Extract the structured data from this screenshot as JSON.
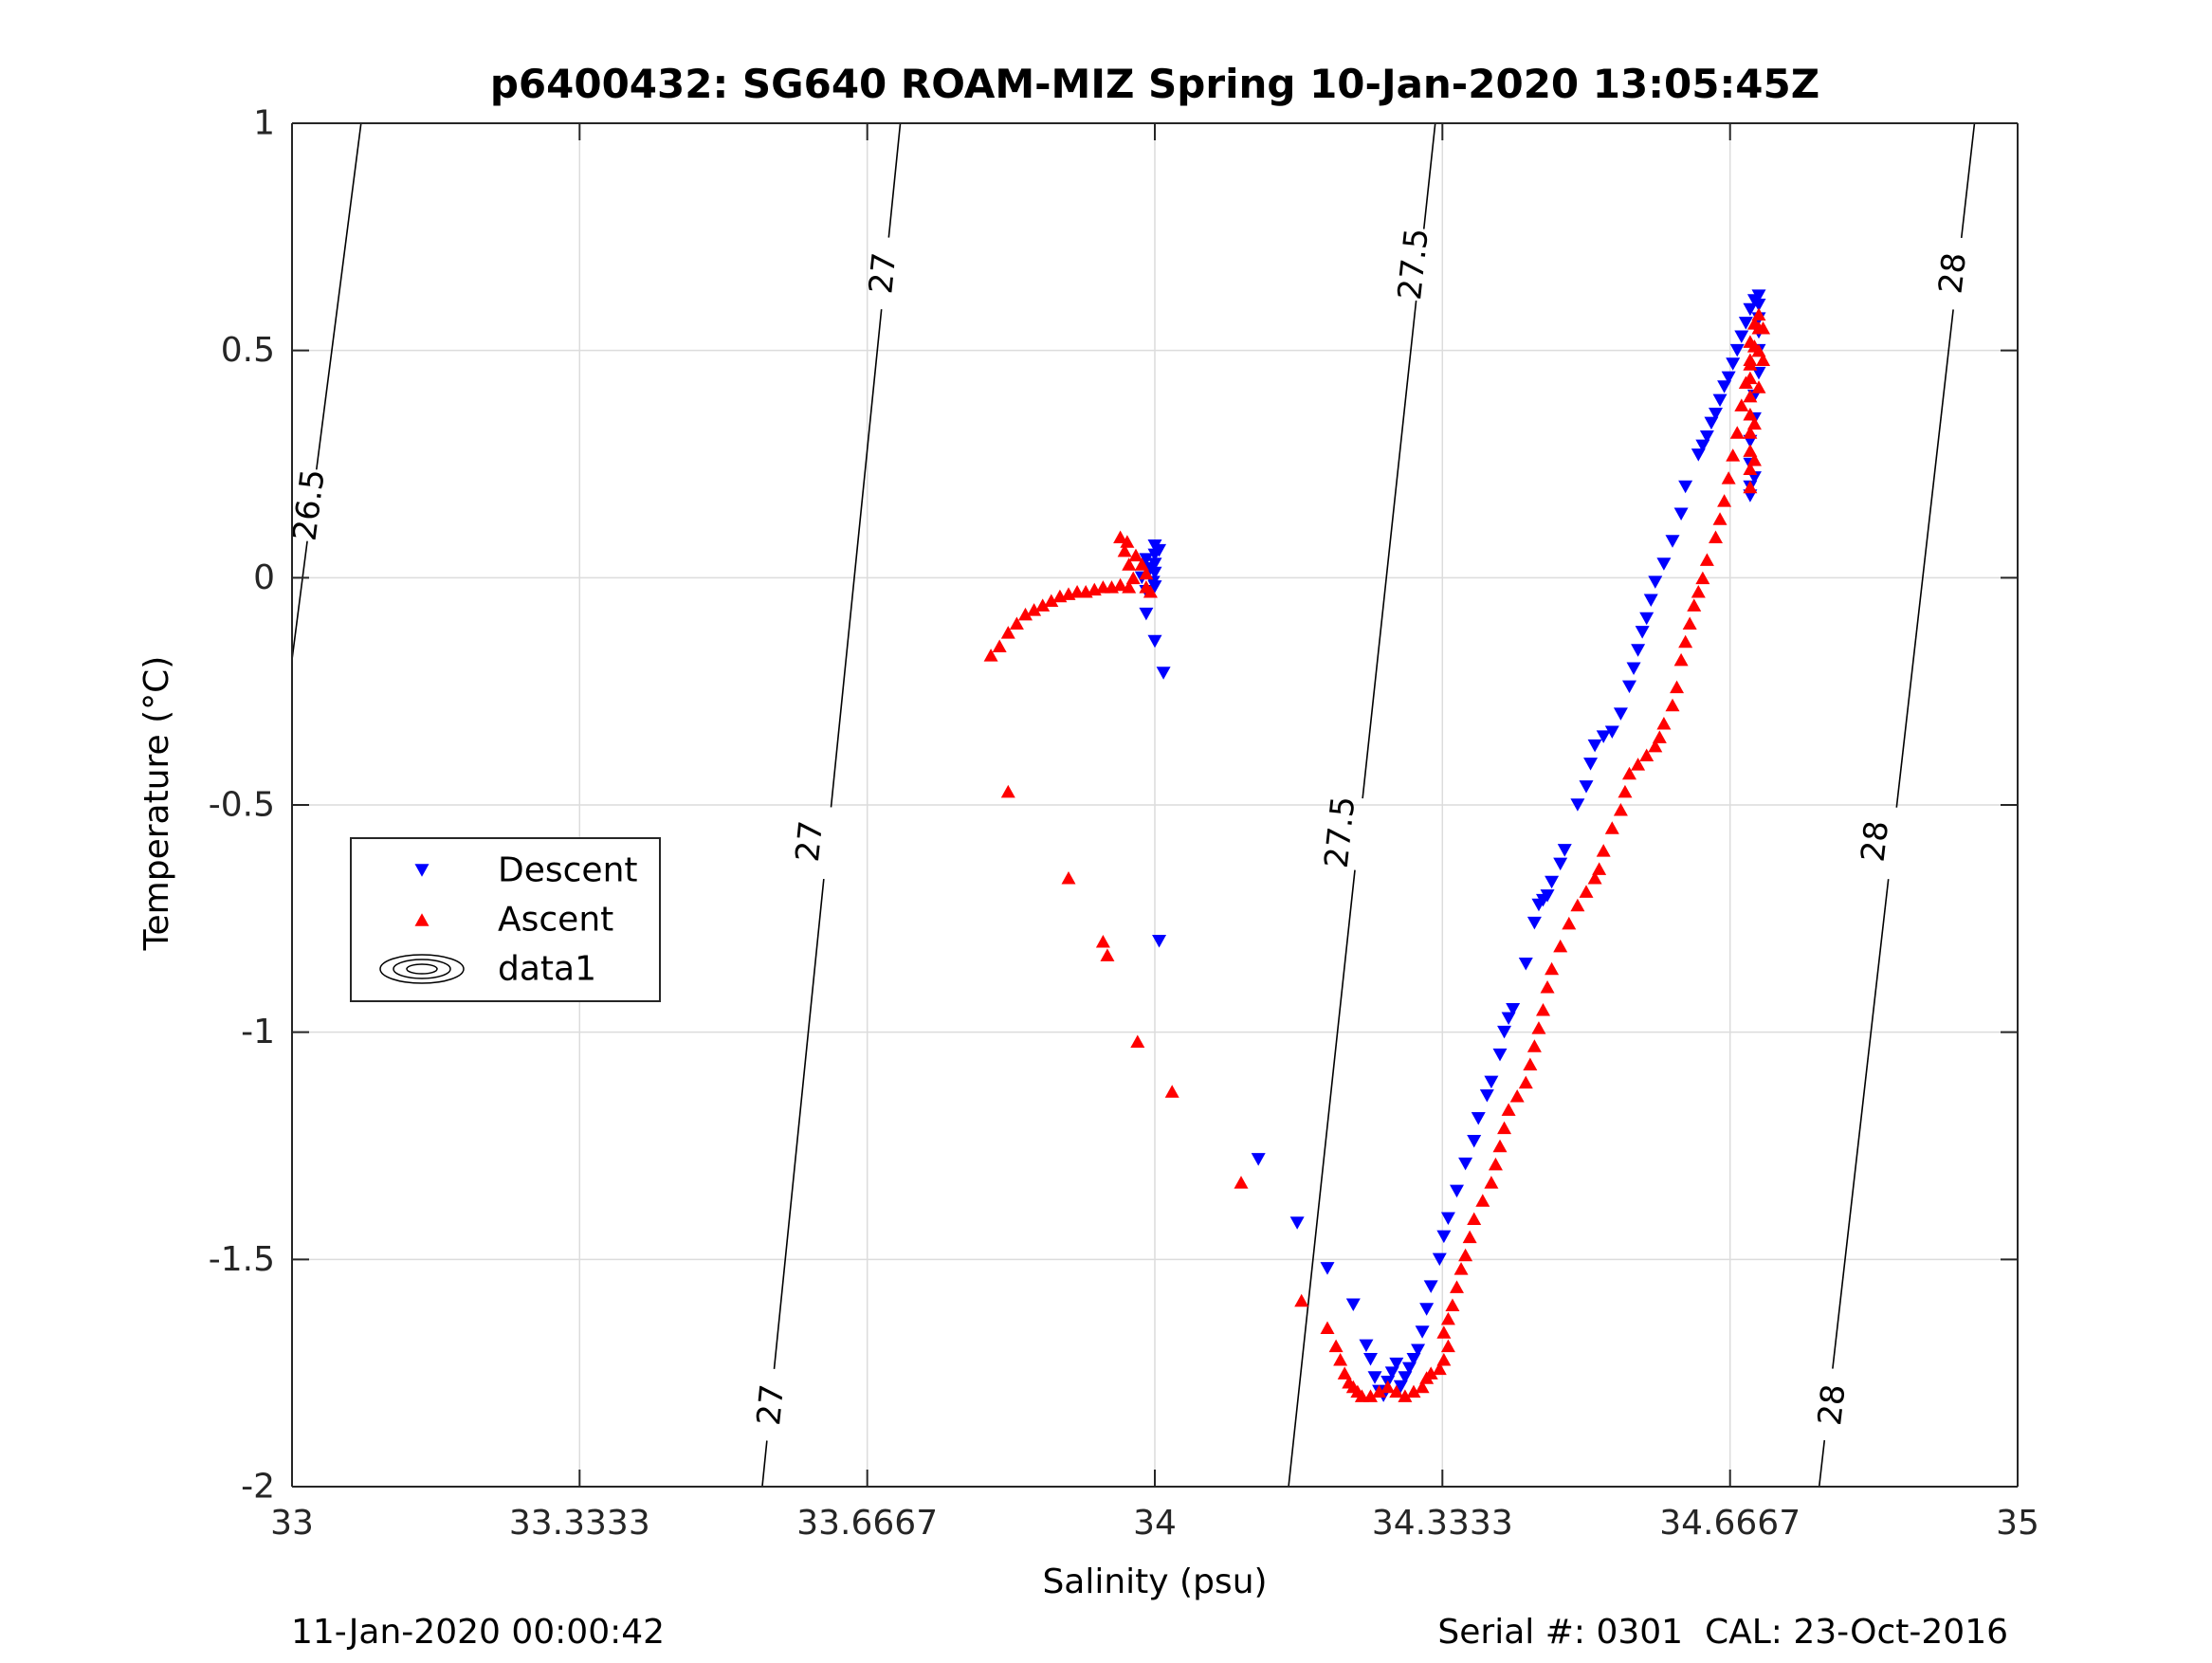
{
  "chart_data": {
    "type": "scatter",
    "title": "p6400432: SG640 ROAM-MIZ Spring 10-Jan-2020 13:05:45Z",
    "xlabel": "Salinity (psu)",
    "ylabel": "Temperature (°C)",
    "xlim": [
      33,
      35
    ],
    "ylim": [
      -2,
      1
    ],
    "xticks": [
      33,
      33.3333,
      33.6667,
      34,
      34.3333,
      34.6667,
      35
    ],
    "xtick_labels": [
      "33",
      "33.3333",
      "33.6667",
      "34",
      "34.3333",
      "34.6667",
      "35"
    ],
    "yticks": [
      1,
      0.5,
      0,
      -0.5,
      -1,
      -1.5,
      -2
    ],
    "ytick_labels": [
      "1",
      "0.5",
      "0",
      "-0.5",
      "-1",
      "-1.5",
      "-2"
    ],
    "grid": true,
    "legend_position": "left-middle",
    "footer_left": "11-Jan-2020 00:00:42",
    "footer_right": "Serial #: 0301  CAL: 23-Oct-2016",
    "contours": [
      {
        "level": "26.5",
        "points": [
          [
            33.08,
            1.0
          ],
          [
            33.0,
            -0.18
          ]
        ],
        "labels": [
          {
            "text": "26.5",
            "x": 33.02,
            "y": 0.16
          }
        ]
      },
      {
        "level": "27",
        "points": [
          [
            33.705,
            1.0
          ],
          [
            33.545,
            -2.0
          ]
        ],
        "labels": [
          {
            "text": "27",
            "x": 33.685,
            "y": 0.67
          },
          {
            "text": "27",
            "x": 33.6,
            "y": -0.58
          },
          {
            "text": "27",
            "x": 33.555,
            "y": -1.82
          }
        ]
      },
      {
        "level": "27.5",
        "points": [
          [
            34.325,
            1.0
          ],
          [
            34.155,
            -2.0
          ]
        ],
        "labels": [
          {
            "text": "27.5",
            "x": 34.3,
            "y": 0.69
          },
          {
            "text": "27.5",
            "x": 34.215,
            "y": -0.56
          }
        ]
      },
      {
        "level": "28",
        "points": [
          [
            34.95,
            1.0
          ],
          [
            34.77,
            -2.0
          ]
        ],
        "labels": [
          {
            "text": "28",
            "x": 34.925,
            "y": 0.67
          },
          {
            "text": "28",
            "x": 34.835,
            "y": -0.58
          },
          {
            "text": "28",
            "x": 34.785,
            "y": -1.82
          }
        ]
      }
    ],
    "series": [
      {
        "name": "Descent",
        "marker": "triangle-down",
        "color": "#0000ff",
        "points": [
          [
            34.0,
            0.07
          ],
          [
            34.0,
            0.05
          ],
          [
            34.0,
            0.03
          ],
          [
            34.0,
            0.01
          ],
          [
            33.995,
            0.02
          ],
          [
            33.998,
            -0.01
          ],
          [
            34.005,
            0.06
          ],
          [
            33.99,
            0.04
          ],
          [
            33.985,
            0.0
          ],
          [
            33.99,
            -0.03
          ],
          [
            34.0,
            -0.02
          ],
          [
            33.99,
            -0.08
          ],
          [
            34.0,
            -0.14
          ],
          [
            34.01,
            -0.21
          ],
          [
            34.005,
            -0.8
          ],
          [
            34.12,
            -1.28
          ],
          [
            34.165,
            -1.42
          ],
          [
            34.2,
            -1.52
          ],
          [
            34.23,
            -1.6
          ],
          [
            34.245,
            -1.69
          ],
          [
            34.25,
            -1.72
          ],
          [
            34.255,
            -1.76
          ],
          [
            34.26,
            -1.79
          ],
          [
            34.265,
            -1.8
          ],
          [
            34.27,
            -1.77
          ],
          [
            34.275,
            -1.75
          ],
          [
            34.28,
            -1.73
          ],
          [
            34.285,
            -1.78
          ],
          [
            34.29,
            -1.76
          ],
          [
            34.295,
            -1.74
          ],
          [
            34.3,
            -1.72
          ],
          [
            34.305,
            -1.7
          ],
          [
            34.31,
            -1.66
          ],
          [
            34.315,
            -1.61
          ],
          [
            34.32,
            -1.56
          ],
          [
            34.33,
            -1.5
          ],
          [
            34.335,
            -1.45
          ],
          [
            34.34,
            -1.41
          ],
          [
            34.35,
            -1.35
          ],
          [
            34.36,
            -1.29
          ],
          [
            34.37,
            -1.24
          ],
          [
            34.375,
            -1.19
          ],
          [
            34.385,
            -1.14
          ],
          [
            34.39,
            -1.11
          ],
          [
            34.4,
            -1.05
          ],
          [
            34.405,
            -1.0
          ],
          [
            34.41,
            -0.97
          ],
          [
            34.415,
            -0.95
          ],
          [
            34.43,
            -0.85
          ],
          [
            34.44,
            -0.76
          ],
          [
            34.445,
            -0.72
          ],
          [
            34.45,
            -0.71
          ],
          [
            34.455,
            -0.7
          ],
          [
            34.46,
            -0.67
          ],
          [
            34.47,
            -0.63
          ],
          [
            34.475,
            -0.6
          ],
          [
            34.49,
            -0.5
          ],
          [
            34.5,
            -0.46
          ],
          [
            34.505,
            -0.41
          ],
          [
            34.51,
            -0.37
          ],
          [
            34.52,
            -0.35
          ],
          [
            34.53,
            -0.34
          ],
          [
            34.54,
            -0.3
          ],
          [
            34.55,
            -0.24
          ],
          [
            34.555,
            -0.2
          ],
          [
            34.56,
            -0.16
          ],
          [
            34.565,
            -0.12
          ],
          [
            34.57,
            -0.09
          ],
          [
            34.575,
            -0.05
          ],
          [
            34.58,
            -0.01
          ],
          [
            34.59,
            0.03
          ],
          [
            34.6,
            0.08
          ],
          [
            34.61,
            0.14
          ],
          [
            34.615,
            0.2
          ],
          [
            34.63,
            0.27
          ],
          [
            34.635,
            0.29
          ],
          [
            34.64,
            0.31
          ],
          [
            34.645,
            0.34
          ],
          [
            34.65,
            0.36
          ],
          [
            34.655,
            0.39
          ],
          [
            34.66,
            0.42
          ],
          [
            34.665,
            0.44
          ],
          [
            34.67,
            0.47
          ],
          [
            34.675,
            0.5
          ],
          [
            34.68,
            0.53
          ],
          [
            34.685,
            0.56
          ],
          [
            34.69,
            0.59
          ],
          [
            34.695,
            0.61
          ],
          [
            34.7,
            0.62
          ],
          [
            34.7,
            0.6
          ],
          [
            34.7,
            0.57
          ],
          [
            34.7,
            0.54
          ],
          [
            34.7,
            0.5
          ],
          [
            34.7,
            0.45
          ],
          [
            34.695,
            0.4
          ],
          [
            34.695,
            0.35
          ],
          [
            34.69,
            0.3
          ],
          [
            34.69,
            0.25
          ],
          [
            34.69,
            0.2
          ],
          [
            34.69,
            0.18
          ],
          [
            34.695,
            0.22
          ]
        ]
      },
      {
        "name": "Ascent",
        "marker": "triangle-up",
        "color": "#ff0000",
        "points": [
          [
            33.81,
            -0.17
          ],
          [
            33.82,
            -0.15
          ],
          [
            33.83,
            -0.12
          ],
          [
            33.84,
            -0.1
          ],
          [
            33.85,
            -0.08
          ],
          [
            33.86,
            -0.07
          ],
          [
            33.87,
            -0.06
          ],
          [
            33.88,
            -0.05
          ],
          [
            33.89,
            -0.04
          ],
          [
            33.9,
            -0.035
          ],
          [
            33.91,
            -0.03
          ],
          [
            33.92,
            -0.03
          ],
          [
            33.93,
            -0.025
          ],
          [
            33.94,
            -0.02
          ],
          [
            33.95,
            -0.02
          ],
          [
            33.96,
            -0.015
          ],
          [
            33.97,
            -0.02
          ],
          [
            33.975,
            0.0
          ],
          [
            33.97,
            0.03
          ],
          [
            33.965,
            0.06
          ],
          [
            33.96,
            0.09
          ],
          [
            33.968,
            0.08
          ],
          [
            33.978,
            0.05
          ],
          [
            33.985,
            0.03
          ],
          [
            33.99,
            0.01
          ],
          [
            33.99,
            -0.02
          ],
          [
            33.995,
            -0.03
          ],
          [
            33.83,
            -0.47
          ],
          [
            33.9,
            -0.66
          ],
          [
            33.94,
            -0.8
          ],
          [
            33.945,
            -0.83
          ],
          [
            33.98,
            -1.02
          ],
          [
            34.02,
            -1.13
          ],
          [
            34.1,
            -1.33
          ],
          [
            34.17,
            -1.59
          ],
          [
            34.2,
            -1.65
          ],
          [
            34.21,
            -1.69
          ],
          [
            34.215,
            -1.72
          ],
          [
            34.22,
            -1.75
          ],
          [
            34.225,
            -1.77
          ],
          [
            34.23,
            -1.78
          ],
          [
            34.235,
            -1.79
          ],
          [
            34.24,
            -1.8
          ],
          [
            34.25,
            -1.8
          ],
          [
            34.26,
            -1.79
          ],
          [
            34.27,
            -1.78
          ],
          [
            34.28,
            -1.79
          ],
          [
            34.29,
            -1.8
          ],
          [
            34.3,
            -1.79
          ],
          [
            34.31,
            -1.78
          ],
          [
            34.315,
            -1.76
          ],
          [
            34.32,
            -1.75
          ],
          [
            34.33,
            -1.74
          ],
          [
            34.335,
            -1.72
          ],
          [
            34.34,
            -1.69
          ],
          [
            34.335,
            -1.66
          ],
          [
            34.34,
            -1.63
          ],
          [
            34.345,
            -1.6
          ],
          [
            34.35,
            -1.56
          ],
          [
            34.355,
            -1.52
          ],
          [
            34.36,
            -1.49
          ],
          [
            34.365,
            -1.45
          ],
          [
            34.37,
            -1.41
          ],
          [
            34.38,
            -1.37
          ],
          [
            34.39,
            -1.33
          ],
          [
            34.395,
            -1.29
          ],
          [
            34.4,
            -1.25
          ],
          [
            34.405,
            -1.21
          ],
          [
            34.41,
            -1.17
          ],
          [
            34.42,
            -1.14
          ],
          [
            34.43,
            -1.11
          ],
          [
            34.435,
            -1.07
          ],
          [
            34.44,
            -1.03
          ],
          [
            34.445,
            -0.99
          ],
          [
            34.45,
            -0.95
          ],
          [
            34.455,
            -0.9
          ],
          [
            34.46,
            -0.86
          ],
          [
            34.47,
            -0.81
          ],
          [
            34.48,
            -0.76
          ],
          [
            34.49,
            -0.72
          ],
          [
            34.5,
            -0.69
          ],
          [
            34.51,
            -0.66
          ],
          [
            34.515,
            -0.64
          ],
          [
            34.52,
            -0.6
          ],
          [
            34.53,
            -0.55
          ],
          [
            34.54,
            -0.51
          ],
          [
            34.545,
            -0.47
          ],
          [
            34.55,
            -0.43
          ],
          [
            34.56,
            -0.41
          ],
          [
            34.57,
            -0.39
          ],
          [
            34.58,
            -0.37
          ],
          [
            34.585,
            -0.35
          ],
          [
            34.59,
            -0.32
          ],
          [
            34.6,
            -0.28
          ],
          [
            34.605,
            -0.24
          ],
          [
            34.61,
            -0.18
          ],
          [
            34.615,
            -0.14
          ],
          [
            34.62,
            -0.1
          ],
          [
            34.625,
            -0.06
          ],
          [
            34.63,
            -0.03
          ],
          [
            34.635,
            0.0
          ],
          [
            34.64,
            0.04
          ],
          [
            34.65,
            0.09
          ],
          [
            34.655,
            0.13
          ],
          [
            34.66,
            0.17
          ],
          [
            34.665,
            0.22
          ],
          [
            34.67,
            0.27
          ],
          [
            34.675,
            0.32
          ],
          [
            34.68,
            0.38
          ],
          [
            34.685,
            0.43
          ],
          [
            34.69,
            0.47
          ],
          [
            34.695,
            0.51
          ],
          [
            34.7,
            0.55
          ],
          [
            34.7,
            0.58
          ],
          [
            34.695,
            0.56
          ],
          [
            34.69,
            0.52
          ],
          [
            34.69,
            0.48
          ],
          [
            34.69,
            0.44
          ],
          [
            34.69,
            0.4
          ],
          [
            34.69,
            0.36
          ],
          [
            34.69,
            0.32
          ],
          [
            34.69,
            0.28
          ],
          [
            34.69,
            0.24
          ],
          [
            34.69,
            0.2
          ],
          [
            34.695,
            0.26
          ],
          [
            34.695,
            0.34
          ],
          [
            34.7,
            0.42
          ],
          [
            34.7,
            0.5
          ],
          [
            34.705,
            0.55
          ],
          [
            34.705,
            0.48
          ]
        ]
      }
    ],
    "legend": [
      {
        "label": "Descent",
        "marker": "triangle-down",
        "color": "#0000ff"
      },
      {
        "label": "Ascent",
        "marker": "triangle-up",
        "color": "#ff0000"
      },
      {
        "label": "data1",
        "marker": "contour",
        "color": "#000000"
      }
    ]
  }
}
